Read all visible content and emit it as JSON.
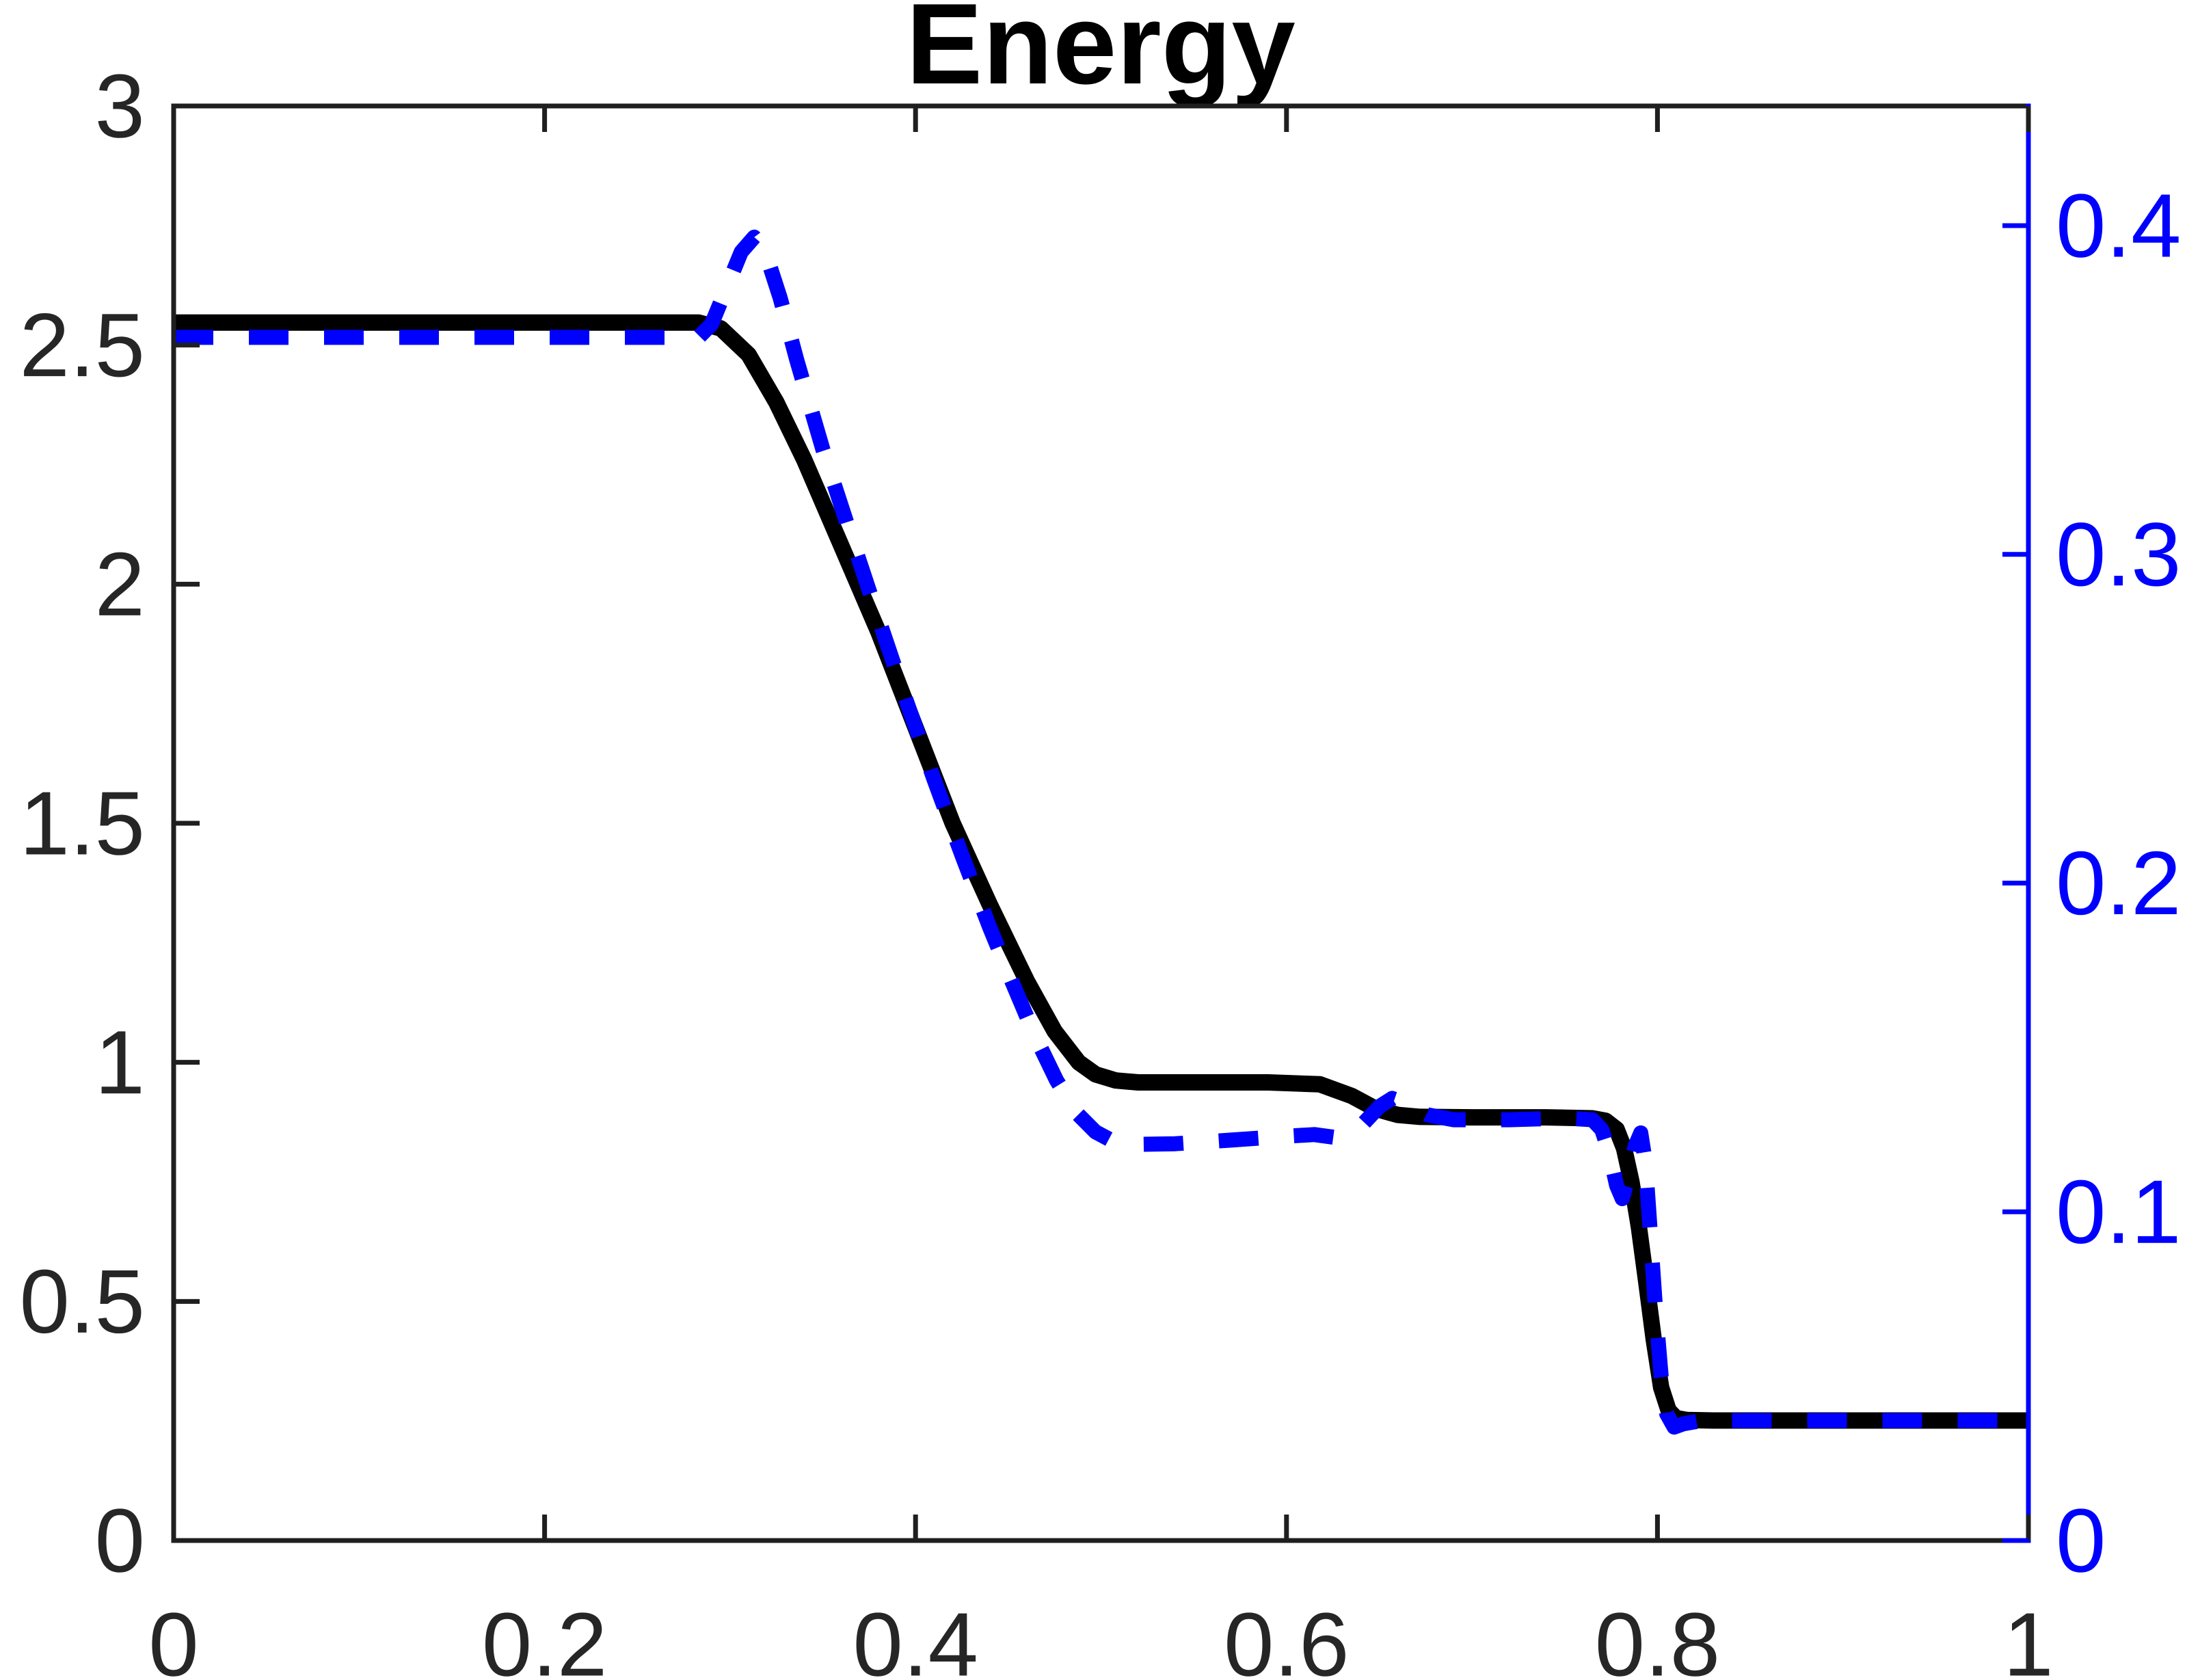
{
  "chart_data": {
    "type": "line",
    "title": "Energy",
    "xlabel": "",
    "ylabel_left": "",
    "ylabel_right": "",
    "grid": false,
    "legend": "none",
    "xlim": [
      0,
      1
    ],
    "ylim_left": [
      0,
      3
    ],
    "ylim_right": [
      0,
      0.4364
    ],
    "x_ticks": {
      "values": [
        0,
        0.2,
        0.4,
        0.6,
        0.8,
        1
      ],
      "labels": [
        "0",
        "0.2",
        "0.4",
        "0.6",
        "0.8",
        "1"
      ]
    },
    "left_y_ticks": {
      "values": [
        0,
        0.5,
        1,
        1.5,
        2,
        2.5,
        3
      ],
      "labels": [
        "0",
        "0.5",
        "1",
        "1.5",
        "2",
        "2.5",
        "3"
      ]
    },
    "right_y_ticks": {
      "values": [
        0,
        0.1,
        0.2,
        0.3,
        0.4
      ],
      "labels": [
        "0",
        "0.1",
        "0.2",
        "0.3",
        "0.4"
      ]
    },
    "colors": {
      "frame": "#1f1f1f",
      "tick_label": "#262626",
      "right_axis": "#0000ff",
      "series_solid": "#000000",
      "series_dashed": "#0000ff",
      "background": "#ffffff"
    },
    "series": [
      {
        "name": "energy-solid-black",
        "axis": "left",
        "style": "solid",
        "color": "#000000",
        "line_width": 24,
        "points": [
          [
            0,
            2.547
          ],
          [
            0.1,
            2.547
          ],
          [
            0.2,
            2.547
          ],
          [
            0.283,
            2.547
          ],
          [
            0.295,
            2.535
          ],
          [
            0.31,
            2.48
          ],
          [
            0.325,
            2.38
          ],
          [
            0.34,
            2.26
          ],
          [
            0.36,
            2.08
          ],
          [
            0.38,
            1.9
          ],
          [
            0.4,
            1.7
          ],
          [
            0.42,
            1.5
          ],
          [
            0.44,
            1.33
          ],
          [
            0.46,
            1.17
          ],
          [
            0.475,
            1.065
          ],
          [
            0.488,
            1.0
          ],
          [
            0.497,
            0.975
          ],
          [
            0.508,
            0.962
          ],
          [
            0.52,
            0.958
          ],
          [
            0.56,
            0.958
          ],
          [
            0.59,
            0.958
          ],
          [
            0.618,
            0.954
          ],
          [
            0.635,
            0.93
          ],
          [
            0.648,
            0.903
          ],
          [
            0.66,
            0.89
          ],
          [
            0.672,
            0.886
          ],
          [
            0.7,
            0.885
          ],
          [
            0.74,
            0.885
          ],
          [
            0.765,
            0.883
          ],
          [
            0.772,
            0.878
          ],
          [
            0.778,
            0.86
          ],
          [
            0.782,
            0.82
          ],
          [
            0.786,
            0.75
          ],
          [
            0.79,
            0.655
          ],
          [
            0.794,
            0.54
          ],
          [
            0.798,
            0.42
          ],
          [
            0.802,
            0.32
          ],
          [
            0.806,
            0.272
          ],
          [
            0.81,
            0.256
          ],
          [
            0.816,
            0.252
          ],
          [
            0.83,
            0.251
          ],
          [
            0.9,
            0.251
          ],
          [
            1.0,
            0.251
          ]
        ]
      },
      {
        "name": "energy-dashed-blue",
        "axis": "right",
        "style": "dashed",
        "color": "#0000ff",
        "line_width": 22,
        "points": [
          [
            0,
            0.366
          ],
          [
            0.1,
            0.366
          ],
          [
            0.2,
            0.366
          ],
          [
            0.283,
            0.366
          ],
          [
            0.29,
            0.37
          ],
          [
            0.298,
            0.381
          ],
          [
            0.306,
            0.392
          ],
          [
            0.313,
            0.3965
          ],
          [
            0.319,
            0.392
          ],
          [
            0.327,
            0.378
          ],
          [
            0.336,
            0.359
          ],
          [
            0.35,
            0.332
          ],
          [
            0.365,
            0.306
          ],
          [
            0.38,
            0.2805
          ],
          [
            0.395,
            0.2555
          ],
          [
            0.41,
            0.2315
          ],
          [
            0.425,
            0.2085
          ],
          [
            0.44,
            0.1865
          ],
          [
            0.452,
            0.17
          ],
          [
            0.464,
            0.154
          ],
          [
            0.476,
            0.14
          ],
          [
            0.487,
            0.13
          ],
          [
            0.497,
            0.1243
          ],
          [
            0.507,
            0.1213
          ],
          [
            0.52,
            0.1205
          ],
          [
            0.54,
            0.1207
          ],
          [
            0.57,
            0.1218
          ],
          [
            0.6,
            0.123
          ],
          [
            0.615,
            0.1235
          ],
          [
            0.628,
            0.1225
          ],
          [
            0.64,
            0.126
          ],
          [
            0.65,
            0.132
          ],
          [
            0.657,
            0.1345
          ],
          [
            0.665,
            0.133
          ],
          [
            0.676,
            0.1295
          ],
          [
            0.69,
            0.128
          ],
          [
            0.72,
            0.128
          ],
          [
            0.75,
            0.1285
          ],
          [
            0.765,
            0.128
          ],
          [
            0.77,
            0.125
          ],
          [
            0.774,
            0.118
          ],
          [
            0.778,
            0.108
          ],
          [
            0.781,
            0.104
          ],
          [
            0.7845,
            0.111
          ],
          [
            0.788,
            0.12
          ],
          [
            0.791,
            0.124
          ],
          [
            0.7935,
            0.115
          ],
          [
            0.796,
            0.095
          ],
          [
            0.799,
            0.07
          ],
          [
            0.802,
            0.05
          ],
          [
            0.805,
            0.0385
          ],
          [
            0.809,
            0.0345
          ],
          [
            0.814,
            0.0355
          ],
          [
            0.822,
            0.0363
          ],
          [
            0.84,
            0.0365
          ],
          [
            0.92,
            0.0365
          ],
          [
            1.0,
            0.0365
          ]
        ]
      }
    ]
  }
}
